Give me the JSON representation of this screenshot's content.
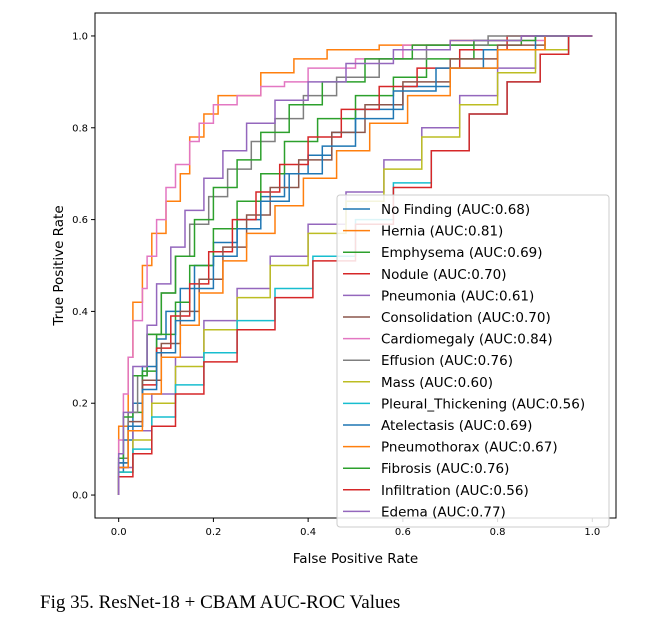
{
  "chart_data": {
    "type": "line",
    "title": "",
    "xlabel": "False Positive Rate",
    "ylabel": "True Positive Rate",
    "xlim": [
      -0.05,
      1.05
    ],
    "ylim": [
      -0.05,
      1.05
    ],
    "x_ticks": [
      "0.0",
      "0.2",
      "0.4",
      "0.6",
      "0.8",
      "1.0"
    ],
    "y_ticks": [
      "0.0",
      "0.2",
      "0.4",
      "0.6",
      "0.8",
      "1.0"
    ],
    "grid": false,
    "legend_position": "lower right",
    "series": [
      {
        "name": "No Finding (AUC:0.68)",
        "color": "#1f77b4",
        "points": [
          [
            0,
            0
          ],
          [
            0.01,
            0.05
          ],
          [
            0.03,
            0.12
          ],
          [
            0.05,
            0.2
          ],
          [
            0.08,
            0.28
          ],
          [
            0.1,
            0.34
          ],
          [
            0.13,
            0.4
          ],
          [
            0.16,
            0.45
          ],
          [
            0.2,
            0.5
          ],
          [
            0.25,
            0.55
          ],
          [
            0.3,
            0.6
          ],
          [
            0.35,
            0.65
          ],
          [
            0.4,
            0.7
          ],
          [
            0.45,
            0.74
          ],
          [
            0.5,
            0.79
          ],
          [
            0.6,
            0.84
          ],
          [
            0.7,
            0.89
          ],
          [
            0.8,
            0.93
          ],
          [
            0.9,
            0.97
          ],
          [
            1,
            1
          ]
        ]
      },
      {
        "name": "Hernia (AUC:0.81)",
        "color": "#ff7f0e",
        "points": [
          [
            0,
            0
          ],
          [
            0.02,
            0.15
          ],
          [
            0.03,
            0.3
          ],
          [
            0.05,
            0.42
          ],
          [
            0.07,
            0.5
          ],
          [
            0.1,
            0.57
          ],
          [
            0.13,
            0.64
          ],
          [
            0.15,
            0.7
          ],
          [
            0.18,
            0.78
          ],
          [
            0.21,
            0.83
          ],
          [
            0.24,
            0.87
          ],
          [
            0.3,
            0.87
          ],
          [
            0.37,
            0.92
          ],
          [
            0.44,
            0.95
          ],
          [
            0.55,
            0.97
          ],
          [
            0.7,
            0.98
          ],
          [
            0.85,
            0.99
          ],
          [
            1,
            1
          ]
        ]
      },
      {
        "name": "Emphysema (AUC:0.69)",
        "color": "#2ca02c",
        "points": [
          [
            0,
            0
          ],
          [
            0.02,
            0.08
          ],
          [
            0.05,
            0.18
          ],
          [
            0.08,
            0.27
          ],
          [
            0.12,
            0.35
          ],
          [
            0.15,
            0.42
          ],
          [
            0.2,
            0.5
          ],
          [
            0.25,
            0.58
          ],
          [
            0.3,
            0.64
          ],
          [
            0.35,
            0.7
          ],
          [
            0.42,
            0.77
          ],
          [
            0.5,
            0.82
          ],
          [
            0.58,
            0.87
          ],
          [
            0.65,
            0.91
          ],
          [
            0.75,
            0.95
          ],
          [
            0.85,
            0.98
          ],
          [
            1,
            1
          ]
        ]
      },
      {
        "name": "Nodule (AUC:0.70)",
        "color": "#d62728",
        "points": [
          [
            0,
            0
          ],
          [
            0.02,
            0.06
          ],
          [
            0.05,
            0.15
          ],
          [
            0.08,
            0.24
          ],
          [
            0.11,
            0.32
          ],
          [
            0.15,
            0.39
          ],
          [
            0.19,
            0.46
          ],
          [
            0.24,
            0.53
          ],
          [
            0.29,
            0.6
          ],
          [
            0.34,
            0.66
          ],
          [
            0.4,
            0.72
          ],
          [
            0.47,
            0.78
          ],
          [
            0.55,
            0.84
          ],
          [
            0.63,
            0.89
          ],
          [
            0.72,
            0.93
          ],
          [
            0.82,
            0.97
          ],
          [
            1,
            1
          ]
        ]
      },
      {
        "name": "Pneumonia (AUC:0.61)",
        "color": "#9467bd",
        "points": [
          [
            0,
            0
          ],
          [
            0.03,
            0.06
          ],
          [
            0.07,
            0.14
          ],
          [
            0.12,
            0.22
          ],
          [
            0.18,
            0.3
          ],
          [
            0.25,
            0.38
          ],
          [
            0.32,
            0.45
          ],
          [
            0.4,
            0.52
          ],
          [
            0.48,
            0.59
          ],
          [
            0.56,
            0.66
          ],
          [
            0.64,
            0.73
          ],
          [
            0.72,
            0.8
          ],
          [
            0.8,
            0.87
          ],
          [
            0.88,
            0.93
          ],
          [
            0.95,
            0.97
          ],
          [
            1,
            1
          ]
        ]
      },
      {
        "name": "Consolidation (AUC:0.70)",
        "color": "#8c564b",
        "points": [
          [
            0,
            0
          ],
          [
            0.02,
            0.07
          ],
          [
            0.05,
            0.16
          ],
          [
            0.09,
            0.25
          ],
          [
            0.13,
            0.33
          ],
          [
            0.17,
            0.4
          ],
          [
            0.22,
            0.47
          ],
          [
            0.27,
            0.54
          ],
          [
            0.32,
            0.61
          ],
          [
            0.38,
            0.67
          ],
          [
            0.45,
            0.73
          ],
          [
            0.52,
            0.79
          ],
          [
            0.6,
            0.85
          ],
          [
            0.7,
            0.9
          ],
          [
            0.8,
            0.95
          ],
          [
            0.9,
            0.98
          ],
          [
            1,
            1
          ]
        ]
      },
      {
        "name": "Cardiomegaly (AUC:0.84)",
        "color": "#e377c2",
        "points": [
          [
            0,
            0
          ],
          [
            0.01,
            0.12
          ],
          [
            0.02,
            0.22
          ],
          [
            0.03,
            0.3
          ],
          [
            0.05,
            0.38
          ],
          [
            0.06,
            0.45
          ],
          [
            0.08,
            0.52
          ],
          [
            0.1,
            0.6
          ],
          [
            0.12,
            0.67
          ],
          [
            0.15,
            0.72
          ],
          [
            0.17,
            0.77
          ],
          [
            0.2,
            0.81
          ],
          [
            0.25,
            0.85
          ],
          [
            0.3,
            0.87
          ],
          [
            0.35,
            0.89
          ],
          [
            0.4,
            0.9
          ],
          [
            0.5,
            0.93
          ],
          [
            0.6,
            0.95
          ],
          [
            0.75,
            0.98
          ],
          [
            0.9,
            0.99
          ],
          [
            1,
            1
          ]
        ]
      },
      {
        "name": "Effusion (AUC:0.76)",
        "color": "#7f7f7f",
        "points": [
          [
            0,
            0
          ],
          [
            0.02,
            0.08
          ],
          [
            0.04,
            0.18
          ],
          [
            0.06,
            0.26
          ],
          [
            0.09,
            0.35
          ],
          [
            0.12,
            0.44
          ],
          [
            0.15,
            0.52
          ],
          [
            0.19,
            0.59
          ],
          [
            0.23,
            0.65
          ],
          [
            0.28,
            0.71
          ],
          [
            0.33,
            0.77
          ],
          [
            0.39,
            0.82
          ],
          [
            0.46,
            0.87
          ],
          [
            0.55,
            0.91
          ],
          [
            0.65,
            0.95
          ],
          [
            0.78,
            0.98
          ],
          [
            1,
            1
          ]
        ]
      },
      {
        "name": "Mass (AUC:0.60)",
        "color": "#bcbd22",
        "points": [
          [
            0,
            0
          ],
          [
            0.03,
            0.05
          ],
          [
            0.07,
            0.12
          ],
          [
            0.12,
            0.2
          ],
          [
            0.18,
            0.28
          ],
          [
            0.25,
            0.36
          ],
          [
            0.32,
            0.43
          ],
          [
            0.4,
            0.5
          ],
          [
            0.48,
            0.57
          ],
          [
            0.56,
            0.64
          ],
          [
            0.64,
            0.71
          ],
          [
            0.72,
            0.78
          ],
          [
            0.8,
            0.85
          ],
          [
            0.88,
            0.92
          ],
          [
            0.95,
            0.97
          ],
          [
            1,
            1
          ]
        ]
      },
      {
        "name": "Pleural_Thickening (AUC:0.56)",
        "color": "#17becf",
        "points": [
          [
            0,
            0
          ],
          [
            0.03,
            0.05
          ],
          [
            0.07,
            0.1
          ],
          [
            0.12,
            0.17
          ],
          [
            0.18,
            0.24
          ],
          [
            0.25,
            0.31
          ],
          [
            0.33,
            0.38
          ],
          [
            0.41,
            0.45
          ],
          [
            0.5,
            0.52
          ],
          [
            0.58,
            0.6
          ],
          [
            0.66,
            0.68
          ],
          [
            0.74,
            0.75
          ],
          [
            0.82,
            0.83
          ],
          [
            0.89,
            0.9
          ],
          [
            0.95,
            0.96
          ],
          [
            1,
            1
          ]
        ]
      },
      {
        "name": "Atelectasis (AUC:0.69)",
        "color": "#1f77b4",
        "points": [
          [
            0,
            0
          ],
          [
            0.02,
            0.07
          ],
          [
            0.05,
            0.15
          ],
          [
            0.08,
            0.23
          ],
          [
            0.12,
            0.31
          ],
          [
            0.16,
            0.38
          ],
          [
            0.2,
            0.45
          ],
          [
            0.25,
            0.52
          ],
          [
            0.3,
            0.58
          ],
          [
            0.36,
            0.64
          ],
          [
            0.43,
            0.7
          ],
          [
            0.5,
            0.76
          ],
          [
            0.58,
            0.82
          ],
          [
            0.67,
            0.88
          ],
          [
            0.77,
            0.93
          ],
          [
            0.88,
            0.97
          ],
          [
            1,
            1
          ]
        ]
      },
      {
        "name": "Pneumothorax (AUC:0.67)",
        "color": "#ff7f0e",
        "points": [
          [
            0,
            0
          ],
          [
            0.02,
            0.06
          ],
          [
            0.05,
            0.14
          ],
          [
            0.09,
            0.22
          ],
          [
            0.13,
            0.3
          ],
          [
            0.17,
            0.37
          ],
          [
            0.22,
            0.44
          ],
          [
            0.27,
            0.51
          ],
          [
            0.33,
            0.57
          ],
          [
            0.39,
            0.63
          ],
          [
            0.46,
            0.69
          ],
          [
            0.53,
            0.75
          ],
          [
            0.61,
            0.81
          ],
          [
            0.7,
            0.87
          ],
          [
            0.8,
            0.93
          ],
          [
            0.9,
            0.97
          ],
          [
            1,
            1
          ]
        ]
      },
      {
        "name": "Fibrosis (AUC:0.76)",
        "color": "#2ca02c",
        "points": [
          [
            0,
            0
          ],
          [
            0.01,
            0.08
          ],
          [
            0.03,
            0.17
          ],
          [
            0.06,
            0.26
          ],
          [
            0.09,
            0.35
          ],
          [
            0.12,
            0.44
          ],
          [
            0.16,
            0.52
          ],
          [
            0.2,
            0.6
          ],
          [
            0.25,
            0.67
          ],
          [
            0.3,
            0.73
          ],
          [
            0.36,
            0.79
          ],
          [
            0.43,
            0.85
          ],
          [
            0.52,
            0.9
          ],
          [
            0.62,
            0.95
          ],
          [
            0.75,
            0.98
          ],
          [
            0.88,
            0.99
          ],
          [
            1,
            1
          ]
        ]
      },
      {
        "name": "Infiltration (AUC:0.56)",
        "color": "#d62728",
        "points": [
          [
            0,
            0
          ],
          [
            0.03,
            0.04
          ],
          [
            0.07,
            0.09
          ],
          [
            0.12,
            0.15
          ],
          [
            0.18,
            0.22
          ],
          [
            0.25,
            0.29
          ],
          [
            0.33,
            0.36
          ],
          [
            0.41,
            0.43
          ],
          [
            0.5,
            0.51
          ],
          [
            0.58,
            0.59
          ],
          [
            0.66,
            0.67
          ],
          [
            0.74,
            0.75
          ],
          [
            0.82,
            0.83
          ],
          [
            0.89,
            0.9
          ],
          [
            0.95,
            0.96
          ],
          [
            1,
            1
          ]
        ]
      },
      {
        "name": "Edema (AUC:0.77)",
        "color": "#9467bd",
        "points": [
          [
            0,
            0
          ],
          [
            0.01,
            0.09
          ],
          [
            0.03,
            0.18
          ],
          [
            0.06,
            0.28
          ],
          [
            0.08,
            0.37
          ],
          [
            0.11,
            0.46
          ],
          [
            0.14,
            0.54
          ],
          [
            0.18,
            0.62
          ],
          [
            0.22,
            0.69
          ],
          [
            0.27,
            0.75
          ],
          [
            0.33,
            0.81
          ],
          [
            0.4,
            0.86
          ],
          [
            0.48,
            0.9
          ],
          [
            0.58,
            0.94
          ],
          [
            0.7,
            0.97
          ],
          [
            0.85,
            0.99
          ],
          [
            1,
            1
          ]
        ]
      }
    ]
  },
  "caption": "Fig 35. ResNet-18 + CBAM AUC-ROC Values"
}
